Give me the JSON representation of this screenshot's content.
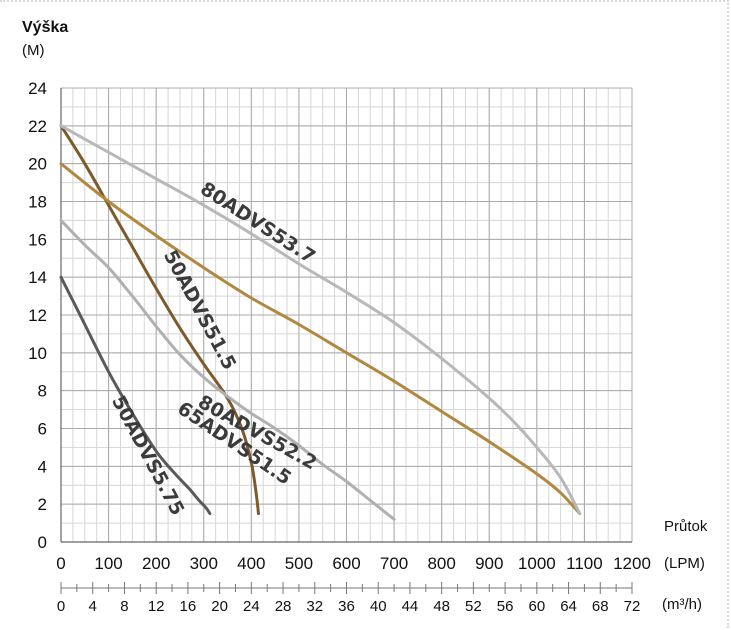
{
  "chart_data": {
    "type": "line",
    "ylabel": "Výška",
    "yunit": "(M)",
    "xlabel": "Průtok",
    "xunit": "(LPM)",
    "x2unit": "(m³/h)",
    "xlim": [
      0,
      1200
    ],
    "ylim": [
      0,
      24
    ],
    "x_ticks": [
      "0",
      "100",
      "200",
      "300",
      "400",
      "500",
      "600",
      "700",
      "800",
      "900",
      "1000",
      "1100",
      "1200"
    ],
    "y_ticks": [
      "0",
      "2",
      "4",
      "6",
      "8",
      "10",
      "12",
      "14",
      "16",
      "18",
      "20",
      "22",
      "24"
    ],
    "x2_ticks": [
      "0",
      "4",
      "8",
      "12",
      "16",
      "20",
      "24",
      "28",
      "32",
      "36",
      "40",
      "44",
      "48",
      "52",
      "56",
      "60",
      "64",
      "68",
      "72"
    ],
    "grid": true,
    "series": [
      {
        "name": "50ADVS5.75",
        "color": "#5a5a5a",
        "x": [
          0,
          50,
          100,
          150,
          200,
          240,
          270,
          290,
          305,
          313
        ],
        "y": [
          14,
          11.5,
          9.0,
          6.8,
          4.8,
          3.6,
          2.8,
          2.2,
          1.8,
          1.5
        ]
      },
      {
        "name": "50ADVS51.5",
        "color": "#7b5a2c",
        "x": [
          0,
          50,
          100,
          150,
          200,
          250,
          300,
          350,
          380,
          400,
          410,
          415
        ],
        "y": [
          22,
          20.0,
          17.8,
          15.6,
          13.4,
          11.3,
          9.4,
          7.6,
          6.0,
          4.2,
          2.6,
          1.5
        ]
      },
      {
        "name": "65ADVS51.5",
        "color": "#b0b0b0",
        "x": [
          0,
          50,
          100,
          150,
          200,
          250,
          300,
          350,
          400,
          450,
          500,
          550,
          600,
          650,
          700
        ],
        "y": [
          17,
          15.7,
          14.5,
          13.0,
          11.4,
          9.9,
          8.7,
          7.7,
          6.8,
          6.0,
          5.1,
          4.1,
          3.2,
          2.2,
          1.2
        ]
      },
      {
        "name": "80ADVS52.2",
        "color": "#b08840",
        "x": [
          0,
          100,
          200,
          300,
          400,
          500,
          600,
          700,
          800,
          900,
          1000,
          1050,
          1090
        ],
        "y": [
          20,
          18.0,
          16.2,
          14.5,
          12.9,
          11.5,
          10.0,
          8.5,
          6.9,
          5.3,
          3.6,
          2.6,
          1.5
        ]
      },
      {
        "name": "80ADVS53.7",
        "color": "#b8b8b8",
        "x": [
          0,
          100,
          200,
          300,
          400,
          500,
          600,
          700,
          800,
          900,
          950,
          1000,
          1050,
          1090
        ],
        "y": [
          22,
          20.6,
          19.2,
          17.8,
          16.3,
          14.7,
          13.2,
          11.6,
          9.7,
          7.6,
          6.4,
          5.0,
          3.4,
          1.5
        ]
      }
    ],
    "annotations": [
      {
        "text": "80ADVS53.7",
        "x": 290,
        "y": 18.5,
        "angle": 33
      },
      {
        "text": "50ADVS51.5",
        "x": 215,
        "y": 15.2,
        "angle": 62
      },
      {
        "text": "80ADVS52.2",
        "x": 285,
        "y": 7.2,
        "angle": 29
      },
      {
        "text": "65ADVS51.5",
        "x": 242,
        "y": 6.9,
        "angle": 34
      },
      {
        "text": "50ADVS5.75",
        "x": 106,
        "y": 7.5,
        "angle": 62
      }
    ]
  }
}
